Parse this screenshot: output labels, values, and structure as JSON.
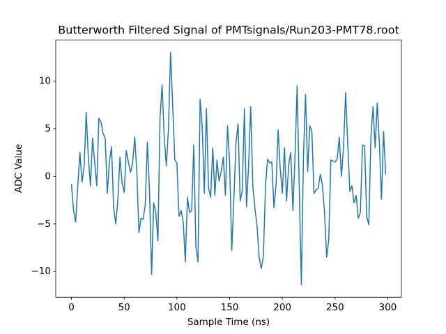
{
  "chart_data": {
    "type": "line",
    "title": "Butterworth Filtered Signal of PMTsignals/Run203-PMT78.root",
    "x_label": "Sample Time (ns)",
    "y_label": "ADC Value",
    "color": "#1f77b4",
    "x": [
      0,
      2,
      4,
      6,
      8,
      10,
      12,
      14,
      16,
      18,
      20,
      22,
      24,
      26,
      28,
      30,
      32,
      34,
      36,
      38,
      40,
      42,
      44,
      46,
      48,
      50,
      52,
      54,
      56,
      58,
      60,
      62,
      64,
      66,
      68,
      70,
      72,
      74,
      76,
      78,
      80,
      82,
      84,
      86,
      88,
      90,
      92,
      94,
      96,
      98,
      100,
      102,
      104,
      106,
      108,
      110,
      112,
      114,
      116,
      118,
      120,
      122,
      124,
      126,
      128,
      130,
      132,
      134,
      136,
      138,
      140,
      142,
      144,
      146,
      148,
      150,
      152,
      154,
      156,
      158,
      160,
      162,
      164,
      166,
      168,
      170,
      172,
      174,
      176,
      178,
      180,
      182,
      184,
      186,
      188,
      190,
      192,
      194,
      196,
      198,
      200,
      202,
      204,
      206,
      208,
      210,
      212,
      214,
      216,
      218,
      220,
      222,
      224,
      226,
      228,
      230,
      232,
      234,
      236,
      238,
      240,
      242,
      244,
      246,
      248,
      250,
      252,
      254,
      256,
      258,
      260,
      262,
      264,
      266,
      268,
      270,
      272,
      274,
      276,
      278,
      280,
      282,
      284,
      286,
      288,
      290,
      292,
      294,
      296,
      298
    ],
    "values": [
      -0.8,
      -3.6,
      -4.8,
      -1,
      2.5,
      -0.6,
      1,
      6.7,
      2,
      -1,
      4,
      1.5,
      -1,
      6.1,
      5.7,
      4.5,
      4,
      -1.8,
      1.5,
      3.1,
      -3.3,
      -5,
      -2.5,
      2,
      -0.7,
      -1.7,
      2.7,
      1.5,
      0.4,
      1.4,
      4.1,
      0.5,
      -5.9,
      -4.4,
      -4.5,
      -3,
      3.6,
      -1.5,
      -10.3,
      -2.8,
      -3.8,
      -6.8,
      6.2,
      9.6,
      4,
      1.1,
      5,
      13,
      7.5,
      1.7,
      1.4,
      -4.2,
      -3.6,
      -4.8,
      -9,
      -2.2,
      -3.8,
      -3.6,
      3.3,
      -7.4,
      -9,
      8.1,
      5.3,
      -1.8,
      7.1,
      -1.2,
      -2.2,
      3,
      -2,
      1.7,
      -0.5,
      0.5,
      2,
      -2,
      5.3,
      1.5,
      -7.8,
      -2.5,
      3.5,
      5.5,
      -2.6,
      -1.5,
      7.1,
      -3.2,
      1.2,
      7.3,
      -1,
      -3.4,
      -5.2,
      -8.5,
      -9.7,
      -8.4,
      -1,
      1.8,
      1.4,
      1.5,
      -3.3,
      -1,
      4.9,
      0.8,
      -1.8,
      3,
      -2.6,
      1.2,
      2.5,
      -3.6,
      2,
      9.5,
      -1,
      -11.4,
      2,
      8.6,
      0.5,
      5.3,
      4.7,
      -1.8,
      -1.4,
      -1.3,
      0.2,
      -0.9,
      -3.8,
      -8.5,
      -6.7,
      1.7,
      1.6,
      1.5,
      1.8,
      4.1,
      0,
      3,
      8.8,
      3.5,
      -1.6,
      -1,
      -2.8,
      -2,
      -4.4,
      -3.8,
      3.3,
      3.2,
      -4.2,
      -5.1,
      4.1,
      7.3,
      3,
      7.7,
      3.5,
      -2.4,
      4.7,
      0.2
    ],
    "xlim": [
      -14.9,
      312.9
    ],
    "xticks": [
      0,
      50,
      100,
      150,
      200,
      250,
      300
    ],
    "ylim": [
      -12.7,
      14.3
    ],
    "yticks": [
      {
        "value": -10,
        "label": "−10"
      },
      {
        "value": -5,
        "label": "−5"
      },
      0,
      5,
      10
    ],
    "grid": false
  }
}
